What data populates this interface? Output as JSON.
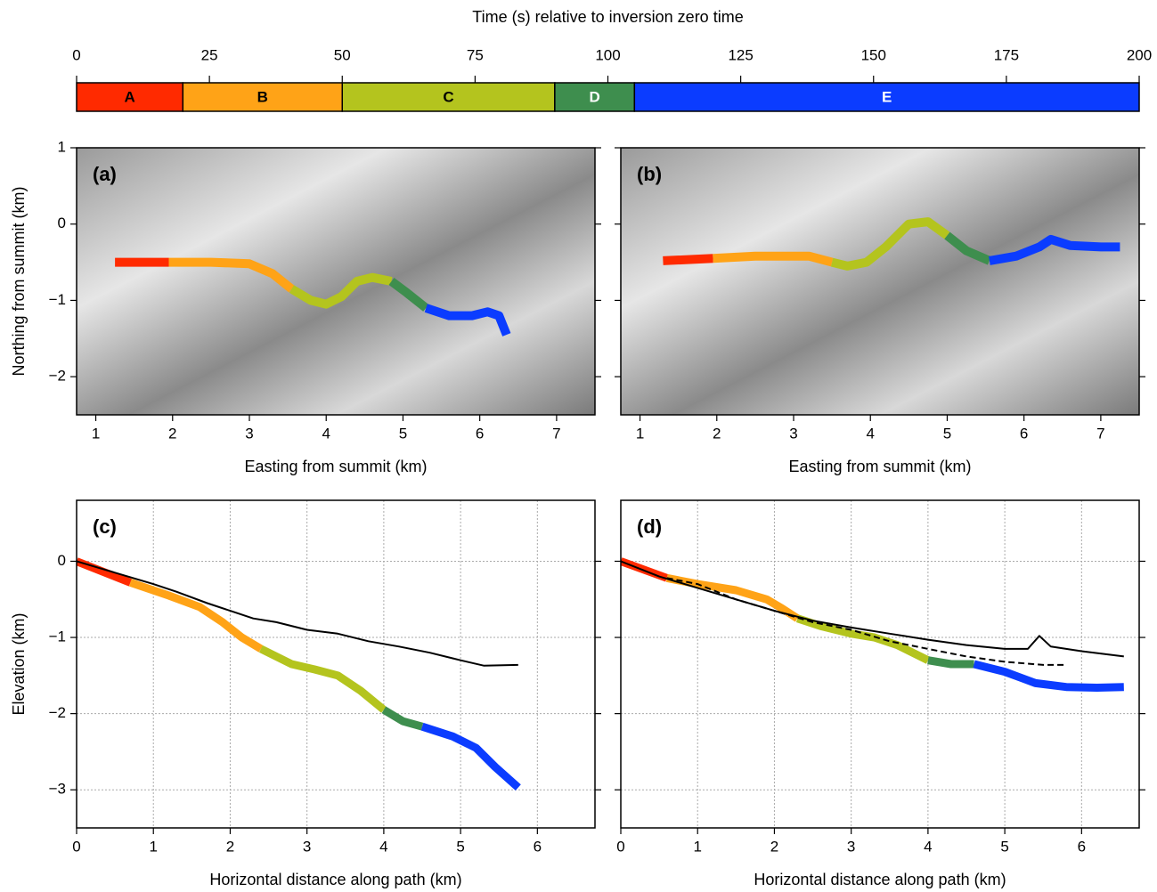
{
  "chart_data": [
    {
      "type": "colorbar",
      "title": "Time (s) relative to inversion zero time",
      "xlim": [
        0,
        200
      ],
      "xticks": [
        0,
        25,
        50,
        75,
        100,
        125,
        150,
        175,
        200
      ],
      "segments": [
        {
          "name": "A",
          "start": 0,
          "end": 20,
          "color": "#ff2a00",
          "label_color": "#000000"
        },
        {
          "name": "B",
          "start": 20,
          "end": 50,
          "color": "#ffa317",
          "label_color": "#000000"
        },
        {
          "name": "C",
          "start": 50,
          "end": 90,
          "color": "#b4c41e",
          "label_color": "#000000"
        },
        {
          "name": "D",
          "start": 90,
          "end": 105,
          "color": "#3e8e4e",
          "label_color": "#ffffff"
        },
        {
          "name": "E",
          "start": 105,
          "end": 200,
          "color": "#0b3cff",
          "label_color": "#ffffff"
        }
      ]
    },
    {
      "type": "map",
      "panel_label": "(a)",
      "xlabel": "Easting from summit (km)",
      "ylabel": "Northing from summit (km)",
      "xlim": [
        0.75,
        7.5
      ],
      "ylim": [
        -2.5,
        1
      ],
      "xticks": [
        1,
        2,
        3,
        4,
        5,
        6,
        7
      ],
      "yticks": [
        {
          "value": -2,
          "label": "−2"
        },
        {
          "value": -1,
          "label": "−1"
        },
        0,
        1
      ],
      "series": [
        {
          "color": "#ff2a00",
          "width": 10,
          "x": [
            1.25,
            1.95
          ],
          "y": [
            -0.5,
            -0.5
          ]
        },
        {
          "color": "#ffa317",
          "width": 10,
          "x": [
            1.95,
            2.5,
            3.0,
            3.3,
            3.55
          ],
          "y": [
            -0.5,
            -0.5,
            -0.52,
            -0.65,
            -0.85
          ]
        },
        {
          "color": "#b4c41e",
          "width": 10,
          "x": [
            3.55,
            3.8,
            4.0,
            4.2,
            4.4,
            4.6,
            4.85
          ],
          "y": [
            -0.85,
            -1.0,
            -1.05,
            -0.95,
            -0.75,
            -0.7,
            -0.75
          ]
        },
        {
          "color": "#3e8e4e",
          "width": 10,
          "x": [
            4.85,
            5.05,
            5.3
          ],
          "y": [
            -0.75,
            -0.9,
            -1.1
          ]
        },
        {
          "color": "#0b3cff",
          "width": 10,
          "x": [
            5.3,
            5.6,
            5.9,
            6.1,
            6.25,
            6.35
          ],
          "y": [
            -1.1,
            -1.2,
            -1.2,
            -1.15,
            -1.2,
            -1.45
          ]
        }
      ]
    },
    {
      "type": "map",
      "panel_label": "(b)",
      "xlabel": "Easting from summit (km)",
      "xlim": [
        0.75,
        7.5
      ],
      "ylim": [
        -2.5,
        1
      ],
      "xticks": [
        1,
        2,
        3,
        4,
        5,
        6,
        7
      ],
      "yticks": [
        {
          "value": -2,
          "label": ""
        },
        {
          "value": -1,
          "label": ""
        },
        {
          "value": 0,
          "label": ""
        },
        {
          "value": 1,
          "label": ""
        }
      ],
      "series": [
        {
          "color": "#ff2a00",
          "width": 10,
          "x": [
            1.3,
            1.95
          ],
          "y": [
            -0.48,
            -0.45
          ]
        },
        {
          "color": "#ffa317",
          "width": 10,
          "x": [
            1.95,
            2.5,
            3.2,
            3.5
          ],
          "y": [
            -0.45,
            -0.42,
            -0.42,
            -0.5
          ]
        },
        {
          "color": "#b4c41e",
          "width": 10,
          "x": [
            3.5,
            3.7,
            3.95,
            4.2,
            4.5,
            4.75,
            5.0
          ],
          "y": [
            -0.5,
            -0.55,
            -0.5,
            -0.3,
            0,
            0.03,
            -0.15
          ]
        },
        {
          "color": "#3e8e4e",
          "width": 10,
          "x": [
            5.0,
            5.25,
            5.55
          ],
          "y": [
            -0.15,
            -0.35,
            -0.48
          ]
        },
        {
          "color": "#0b3cff",
          "width": 10,
          "x": [
            5.55,
            5.9,
            6.2,
            6.35,
            6.6,
            7.0,
            7.25
          ],
          "y": [
            -0.48,
            -0.42,
            -0.3,
            -0.2,
            -0.28,
            -0.3,
            -0.3
          ]
        }
      ]
    },
    {
      "type": "line",
      "panel_label": "(c)",
      "xlabel": "Horizontal distance along path (km)",
      "ylabel": "Elevation (km)",
      "grid": true,
      "xlim": [
        0,
        6.75
      ],
      "ylim": [
        -3.5,
        0.8
      ],
      "xticks": [
        0,
        1,
        2,
        3,
        4,
        5,
        6
      ],
      "yticks": [
        {
          "value": -3,
          "label": "−3"
        },
        {
          "value": -2,
          "label": "−2"
        },
        {
          "value": -1,
          "label": "−1"
        },
        0
      ],
      "series": [
        {
          "color": "#ff2a00",
          "width": 9,
          "linestyle": "solid",
          "x": [
            0,
            0.7
          ],
          "y": [
            0,
            -0.28
          ]
        },
        {
          "color": "#ffa317",
          "width": 9,
          "linestyle": "solid",
          "x": [
            0.7,
            1.2,
            1.6,
            1.9,
            2.15,
            2.4
          ],
          "y": [
            -0.28,
            -0.45,
            -0.6,
            -0.8,
            -1.0,
            -1.15
          ]
        },
        {
          "color": "#b4c41e",
          "width": 9,
          "linestyle": "solid",
          "x": [
            2.4,
            2.8,
            3.1,
            3.4,
            3.7,
            4.0
          ],
          "y": [
            -1.15,
            -1.35,
            -1.42,
            -1.5,
            -1.7,
            -1.95
          ]
        },
        {
          "color": "#3e8e4e",
          "width": 9,
          "linestyle": "solid",
          "x": [
            4.0,
            4.25,
            4.5
          ],
          "y": [
            -1.95,
            -2.1,
            -2.17
          ]
        },
        {
          "color": "#0b3cff",
          "width": 9,
          "linestyle": "solid",
          "x": [
            4.5,
            4.9,
            5.2,
            5.45,
            5.75
          ],
          "y": [
            -2.17,
            -2.3,
            -2.45,
            -2.7,
            -2.97
          ]
        },
        {
          "color": "#000000",
          "width": 2,
          "linestyle": "solid",
          "x": [
            0,
            0.5,
            1,
            1.3,
            1.7,
            2,
            2.3,
            2.6,
            3,
            3.4,
            3.8,
            4.2,
            4.6,
            5,
            5.3,
            5.75
          ],
          "y": [
            0,
            -0.15,
            -0.3,
            -0.4,
            -0.55,
            -0.65,
            -0.75,
            -0.8,
            -0.9,
            -0.95,
            -1.05,
            -1.12,
            -1.2,
            -1.3,
            -1.37,
            -1.36
          ]
        }
      ]
    },
    {
      "type": "line",
      "panel_label": "(d)",
      "xlabel": "Horizontal distance along path (km)",
      "grid": true,
      "xlim": [
        0,
        6.75
      ],
      "ylim": [
        -3.5,
        0.8
      ],
      "xticks": [
        0,
        1,
        2,
        3,
        4,
        5,
        6
      ],
      "yticks": [
        {
          "value": -3,
          "label": ""
        },
        {
          "value": -2,
          "label": ""
        },
        {
          "value": -1,
          "label": ""
        },
        {
          "value": 0,
          "label": ""
        }
      ],
      "series": [
        {
          "color": "#ff2a00",
          "width": 9,
          "linestyle": "solid",
          "x": [
            0,
            0.6
          ],
          "y": [
            0,
            -0.22
          ]
        },
        {
          "color": "#ffa317",
          "width": 9,
          "linestyle": "solid",
          "x": [
            0.6,
            1.0,
            1.5,
            1.9,
            2.1,
            2.3
          ],
          "y": [
            -0.22,
            -0.3,
            -0.38,
            -0.5,
            -0.62,
            -0.75
          ]
        },
        {
          "color": "#b4c41e",
          "width": 9,
          "linestyle": "solid",
          "x": [
            2.3,
            2.6,
            3.0,
            3.3,
            3.6,
            4.0
          ],
          "y": [
            -0.75,
            -0.85,
            -0.95,
            -1.0,
            -1.1,
            -1.3
          ]
        },
        {
          "color": "#3e8e4e",
          "width": 9,
          "linestyle": "solid",
          "x": [
            4.0,
            4.3,
            4.6
          ],
          "y": [
            -1.3,
            -1.35,
            -1.35
          ]
        },
        {
          "color": "#0b3cff",
          "width": 9,
          "linestyle": "solid",
          "x": [
            4.6,
            5.0,
            5.4,
            5.8,
            6.2,
            6.55
          ],
          "y": [
            -1.35,
            -1.45,
            -1.6,
            -1.65,
            -1.66,
            -1.65
          ]
        },
        {
          "color": "#000000",
          "width": 2,
          "linestyle": "solid",
          "x": [
            0,
            0.5,
            1,
            1.5,
            2,
            2.5,
            3,
            3.5,
            4,
            4.5,
            5,
            5.3,
            5.45,
            5.6,
            6,
            6.55
          ],
          "y": [
            0,
            -0.2,
            -0.35,
            -0.5,
            -0.65,
            -0.78,
            -0.87,
            -0.95,
            -1.03,
            -1.1,
            -1.15,
            -1.15,
            -0.98,
            -1.12,
            -1.18,
            -1.25
          ]
        },
        {
          "color": "#000000",
          "width": 2,
          "linestyle": "dashed",
          "x": [
            0.6,
            1,
            1.5,
            2,
            2.5,
            3,
            3.5,
            4,
            4.5,
            5,
            5.5,
            5.8
          ],
          "y": [
            -0.22,
            -0.3,
            -0.5,
            -0.65,
            -0.8,
            -0.9,
            -1.05,
            -1.15,
            -1.25,
            -1.32,
            -1.36,
            -1.36
          ]
        }
      ]
    }
  ]
}
